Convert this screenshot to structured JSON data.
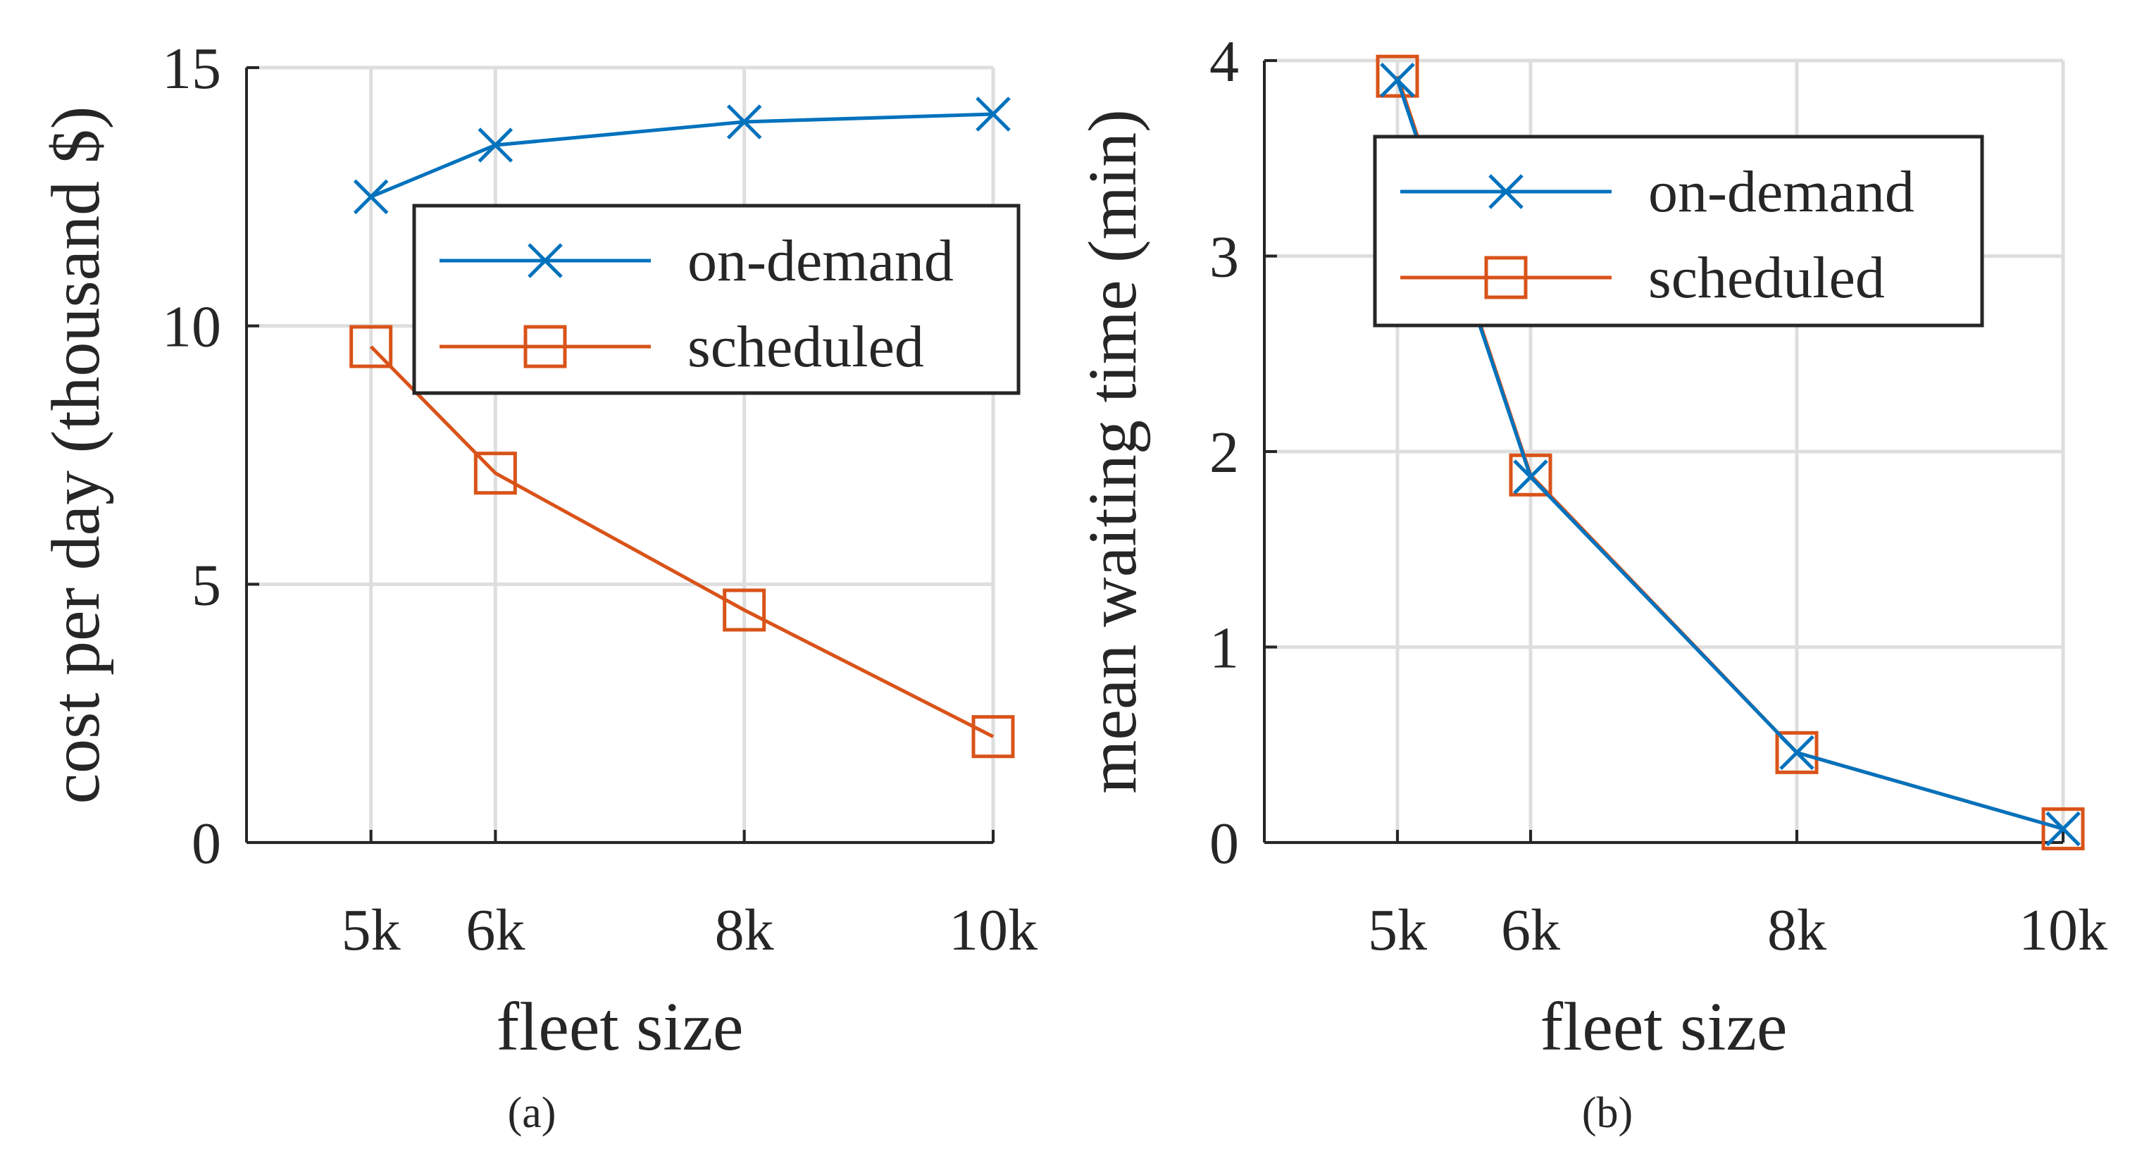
{
  "chart_data": [
    {
      "type": "line",
      "caption": "(a)",
      "xlabel": "fleet size",
      "ylabel": "cost per day (thousand $)",
      "categories": [
        "5k",
        "6k",
        "8k",
        "10k"
      ],
      "x": [
        5,
        6,
        8,
        10
      ],
      "xlim": [
        4,
        10
      ],
      "ylim": [
        0,
        15
      ],
      "yticks": [
        0,
        5,
        10,
        15
      ],
      "ytick_labels": [
        "0",
        "5",
        "10",
        "15"
      ],
      "grid": true,
      "legend_position": "upper-right",
      "series": [
        {
          "name": "on-demand",
          "marker": "x",
          "color": "#0072BD",
          "values": [
            12.5,
            13.5,
            13.95,
            14.1
          ]
        },
        {
          "name": "scheduled",
          "marker": "square",
          "color": "#D95319",
          "values": [
            9.6,
            7.15,
            4.5,
            2.05
          ]
        }
      ]
    },
    {
      "type": "line",
      "caption": "(b)",
      "xlabel": "fleet size",
      "ylabel": "mean waiting time (min)",
      "categories": [
        "5k",
        "6k",
        "8k",
        "10k"
      ],
      "x": [
        5,
        6,
        8,
        10
      ],
      "xlim": [
        4,
        10
      ],
      "ylim": [
        0,
        4
      ],
      "yticks": [
        0,
        1,
        2,
        3,
        4
      ],
      "ytick_labels": [
        "0",
        "1",
        "2",
        "3",
        "4"
      ],
      "grid": true,
      "legend_position": "upper-right",
      "series": [
        {
          "name": "on-demand",
          "marker": "x",
          "color": "#0072BD",
          "values": [
            3.9,
            1.87,
            0.46,
            0.07
          ]
        },
        {
          "name": "scheduled",
          "marker": "square",
          "color": "#D95319",
          "values": [
            3.92,
            1.88,
            0.46,
            0.07
          ]
        }
      ]
    }
  ]
}
